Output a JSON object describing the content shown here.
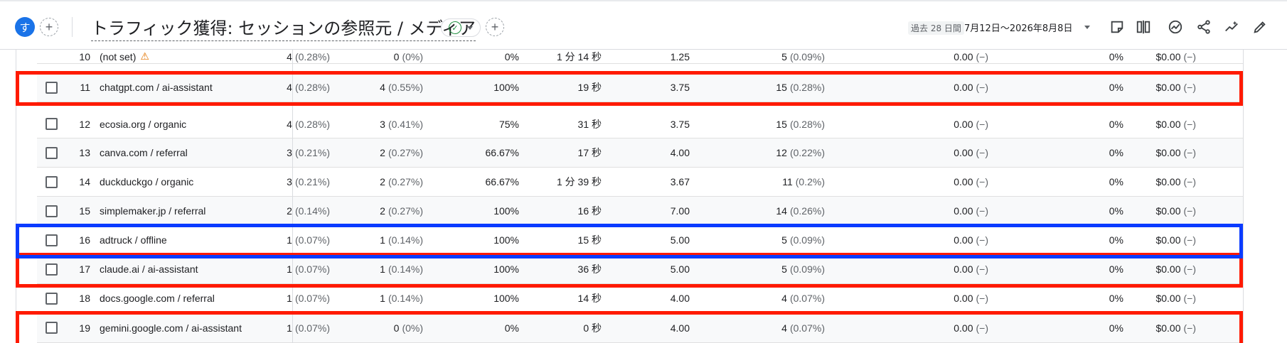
{
  "header": {
    "avatar_letter": "す",
    "add_symbol": "+",
    "title": "トラフィック獲得: セッションの参照元 / メディア",
    "check_symbol": "✓",
    "add_comparison_symbol": "+",
    "date_label": "過去 28 日間",
    "date_range": "7月12日〜2026年8月8日",
    "tools": [
      "edit-note-icon",
      "compare-columns-icon",
      "insights-icon",
      "share-icon",
      "sparkle-insights-icon",
      "pencil-edit-icon"
    ]
  },
  "table": {
    "rows": [
      {
        "index": "10",
        "dimension": "(not set)",
        "warning": "⚠",
        "c1": "4",
        "c1p": "(0.28%)",
        "c2": "0",
        "c2p": "(0%)",
        "c3": "0%",
        "c4": "1 分 14 秒",
        "c5": "1.25",
        "c6": "5",
        "c6p": "(0.09%)",
        "c7": "0.00",
        "c7p": "(−)",
        "c8": "0%",
        "c9": "$0.00",
        "c9p": "(−)",
        "shaded": false
      },
      {
        "index": "11",
        "dimension": "chatgpt.com / ai-assistant",
        "c1": "4",
        "c1p": "(0.28%)",
        "c2": "4",
        "c2p": "(0.55%)",
        "c3": "100%",
        "c4": "19 秒",
        "c5": "3.75",
        "c6": "15",
        "c6p": "(0.28%)",
        "c7": "0.00",
        "c7p": "(−)",
        "c8": "0%",
        "c9": "$0.00",
        "c9p": "(−)",
        "shaded": true
      },
      {
        "index": "12",
        "dimension": "ecosia.org / organic",
        "c1": "4",
        "c1p": "(0.28%)",
        "c2": "3",
        "c2p": "(0.41%)",
        "c3": "75%",
        "c4": "31 秒",
        "c5": "3.75",
        "c6": "15",
        "c6p": "(0.28%)",
        "c7": "0.00",
        "c7p": "(−)",
        "c8": "0%",
        "c9": "$0.00",
        "c9p": "(−)",
        "shaded": false
      },
      {
        "index": "13",
        "dimension": "canva.com / referral",
        "c1": "3",
        "c1p": "(0.21%)",
        "c2": "2",
        "c2p": "(0.27%)",
        "c3": "66.67%",
        "c4": "17 秒",
        "c5": "4.00",
        "c6": "12",
        "c6p": "(0.22%)",
        "c7": "0.00",
        "c7p": "(−)",
        "c8": "0%",
        "c9": "$0.00",
        "c9p": "(−)",
        "shaded": true
      },
      {
        "index": "14",
        "dimension": "duckduckgo / organic",
        "c1": "3",
        "c1p": "(0.21%)",
        "c2": "2",
        "c2p": "(0.27%)",
        "c3": "66.67%",
        "c4": "1 分 39 秒",
        "c5": "3.67",
        "c6": "11",
        "c6p": "(0.2%)",
        "c7": "0.00",
        "c7p": "(−)",
        "c8": "0%",
        "c9": "$0.00",
        "c9p": "(−)",
        "shaded": false
      },
      {
        "index": "15",
        "dimension": "simplemaker.jp / referral",
        "c1": "2",
        "c1p": "(0.14%)",
        "c2": "2",
        "c2p": "(0.27%)",
        "c3": "100%",
        "c4": "16 秒",
        "c5": "7.00",
        "c6": "14",
        "c6p": "(0.26%)",
        "c7": "0.00",
        "c7p": "(−)",
        "c8": "0%",
        "c9": "$0.00",
        "c9p": "(−)",
        "shaded": true
      },
      {
        "index": "16",
        "dimension": "adtruck / offline",
        "c1": "1",
        "c1p": "(0.07%)",
        "c2": "1",
        "c2p": "(0.14%)",
        "c3": "100%",
        "c4": "15 秒",
        "c5": "5.00",
        "c6": "5",
        "c6p": "(0.09%)",
        "c7": "0.00",
        "c7p": "(−)",
        "c8": "0%",
        "c9": "$0.00",
        "c9p": "(−)",
        "shaded": false
      },
      {
        "index": "17",
        "dimension": "claude.ai / ai-assistant",
        "c1": "1",
        "c1p": "(0.07%)",
        "c2": "1",
        "c2p": "(0.14%)",
        "c3": "100%",
        "c4": "36 秒",
        "c5": "5.00",
        "c6": "5",
        "c6p": "(0.09%)",
        "c7": "0.00",
        "c7p": "(−)",
        "c8": "0%",
        "c9": "$0.00",
        "c9p": "(−)",
        "shaded": true
      },
      {
        "index": "18",
        "dimension": "docs.google.com / referral",
        "c1": "1",
        "c1p": "(0.07%)",
        "c2": "1",
        "c2p": "(0.14%)",
        "c3": "100%",
        "c4": "14 秒",
        "c5": "4.00",
        "c6": "4",
        "c6p": "(0.07%)",
        "c7": "0.00",
        "c7p": "(−)",
        "c8": "0%",
        "c9": "$0.00",
        "c9p": "(−)",
        "shaded": false
      },
      {
        "index": "19",
        "dimension": "gemini.google.com / ai-assistant",
        "c1": "1",
        "c1p": "(0.07%)",
        "c2": "0",
        "c2p": "(0%)",
        "c3": "0%",
        "c4": "0 秒",
        "c5": "4.00",
        "c6": "4",
        "c6p": "(0.07%)",
        "c7": "0.00",
        "c7p": "(−)",
        "c8": "0%",
        "c9": "$0.00",
        "c9p": "(−)",
        "shaded": true
      }
    ]
  },
  "highlights": {
    "red": [
      "11",
      "17",
      "19"
    ],
    "blue": [
      "16"
    ],
    "red_color": "#ff1a00",
    "blue_color": "#0b3bff"
  }
}
